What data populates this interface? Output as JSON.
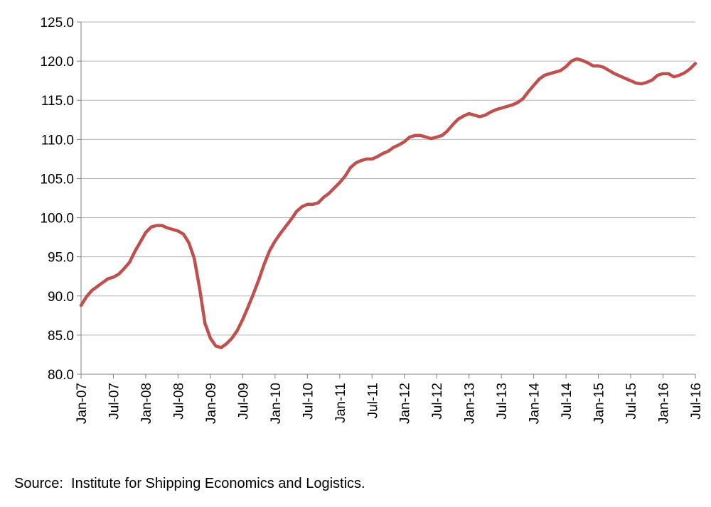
{
  "chart_data": {
    "type": "line",
    "title": "",
    "xlabel": "",
    "ylabel": "",
    "ylim": [
      80,
      125
    ],
    "grid": true,
    "legend": "none",
    "yticks": [
      "80.0",
      "85.0",
      "90.0",
      "95.0",
      "100.0",
      "105.0",
      "110.0",
      "115.0",
      "120.0",
      "125.0"
    ],
    "xticks": [
      "Jan-07",
      "Jul-07",
      "Jan-08",
      "Jul-08",
      "Jan-09",
      "Jul-09",
      "Jan-10",
      "Jul-10",
      "Jan-11",
      "Jul-11",
      "Jan-12",
      "Jul-12",
      "Jan-13",
      "Jul-13",
      "Jan-14",
      "Jul-14",
      "Jan-15",
      "Jul-15",
      "Jan-16",
      "Jul-16"
    ],
    "x_range": [
      "2007-01",
      "2016-07"
    ],
    "series": [
      {
        "color": "#C0504D",
        "points": [
          [
            "2007-01",
            88.8
          ],
          [
            "2007-02",
            89.9
          ],
          [
            "2007-03",
            90.7
          ],
          [
            "2007-04",
            91.2
          ],
          [
            "2007-05",
            91.7
          ],
          [
            "2007-06",
            92.2
          ],
          [
            "2007-07",
            92.4
          ],
          [
            "2007-08",
            92.8
          ],
          [
            "2007-09",
            93.5
          ],
          [
            "2007-10",
            94.3
          ],
          [
            "2007-11",
            95.7
          ],
          [
            "2007-12",
            96.9
          ],
          [
            "2008-01",
            98.1
          ],
          [
            "2008-02",
            98.8
          ],
          [
            "2008-03",
            99.0
          ],
          [
            "2008-04",
            99.0
          ],
          [
            "2008-05",
            98.7
          ],
          [
            "2008-06",
            98.5
          ],
          [
            "2008-07",
            98.3
          ],
          [
            "2008-08",
            97.9
          ],
          [
            "2008-09",
            96.8
          ],
          [
            "2008-10",
            94.8
          ],
          [
            "2008-11",
            91.0
          ],
          [
            "2008-12",
            86.5
          ],
          [
            "2009-01",
            84.6
          ],
          [
            "2009-02",
            83.6
          ],
          [
            "2009-03",
            83.4
          ],
          [
            "2009-04",
            83.9
          ],
          [
            "2009-05",
            84.6
          ],
          [
            "2009-06",
            85.6
          ],
          [
            "2009-07",
            87.0
          ],
          [
            "2009-08",
            88.6
          ],
          [
            "2009-09",
            90.3
          ],
          [
            "2009-10",
            92.1
          ],
          [
            "2009-11",
            94.1
          ],
          [
            "2009-12",
            95.8
          ],
          [
            "2010-01",
            97.0
          ],
          [
            "2010-02",
            98.0
          ],
          [
            "2010-03",
            98.9
          ],
          [
            "2010-04",
            99.8
          ],
          [
            "2010-05",
            100.8
          ],
          [
            "2010-06",
            101.4
          ],
          [
            "2010-07",
            101.7
          ],
          [
            "2010-08",
            101.7
          ],
          [
            "2010-09",
            101.9
          ],
          [
            "2010-10",
            102.6
          ],
          [
            "2010-11",
            103.1
          ],
          [
            "2010-12",
            103.8
          ],
          [
            "2011-01",
            104.5
          ],
          [
            "2011-02",
            105.3
          ],
          [
            "2011-03",
            106.4
          ],
          [
            "2011-04",
            107.0
          ],
          [
            "2011-05",
            107.3
          ],
          [
            "2011-06",
            107.5
          ],
          [
            "2011-07",
            107.5
          ],
          [
            "2011-08",
            107.8
          ],
          [
            "2011-09",
            108.2
          ],
          [
            "2011-10",
            108.5
          ],
          [
            "2011-11",
            109.0
          ],
          [
            "2011-12",
            109.3
          ],
          [
            "2012-01",
            109.7
          ],
          [
            "2012-02",
            110.3
          ],
          [
            "2012-03",
            110.5
          ],
          [
            "2012-04",
            110.5
          ],
          [
            "2012-05",
            110.3
          ],
          [
            "2012-06",
            110.1
          ],
          [
            "2012-07",
            110.3
          ],
          [
            "2012-08",
            110.5
          ],
          [
            "2012-09",
            111.1
          ],
          [
            "2012-10",
            111.9
          ],
          [
            "2012-11",
            112.6
          ],
          [
            "2012-12",
            113.0
          ],
          [
            "2013-01",
            113.3
          ],
          [
            "2013-02",
            113.1
          ],
          [
            "2013-03",
            112.9
          ],
          [
            "2013-04",
            113.1
          ],
          [
            "2013-05",
            113.5
          ],
          [
            "2013-06",
            113.8
          ],
          [
            "2013-07",
            114.0
          ],
          [
            "2013-08",
            114.2
          ],
          [
            "2013-09",
            114.4
          ],
          [
            "2013-10",
            114.7
          ],
          [
            "2013-11",
            115.2
          ],
          [
            "2013-12",
            116.1
          ],
          [
            "2014-01",
            116.9
          ],
          [
            "2014-02",
            117.7
          ],
          [
            "2014-03",
            118.2
          ],
          [
            "2014-04",
            118.4
          ],
          [
            "2014-05",
            118.6
          ],
          [
            "2014-06",
            118.8
          ],
          [
            "2014-07",
            119.3
          ],
          [
            "2014-08",
            120.0
          ],
          [
            "2014-09",
            120.3
          ],
          [
            "2014-10",
            120.1
          ],
          [
            "2014-11",
            119.8
          ],
          [
            "2014-12",
            119.4
          ],
          [
            "2015-01",
            119.4
          ],
          [
            "2015-02",
            119.2
          ],
          [
            "2015-03",
            118.8
          ],
          [
            "2015-04",
            118.4
          ],
          [
            "2015-05",
            118.1
          ],
          [
            "2015-06",
            117.8
          ],
          [
            "2015-07",
            117.5
          ],
          [
            "2015-08",
            117.2
          ],
          [
            "2015-09",
            117.1
          ],
          [
            "2015-10",
            117.3
          ],
          [
            "2015-11",
            117.6
          ],
          [
            "2015-12",
            118.2
          ],
          [
            "2016-01",
            118.4
          ],
          [
            "2016-02",
            118.4
          ],
          [
            "2016-03",
            118.0
          ],
          [
            "2016-04",
            118.2
          ],
          [
            "2016-05",
            118.5
          ],
          [
            "2016-06",
            119.0
          ],
          [
            "2016-07",
            119.7
          ]
        ]
      }
    ]
  },
  "source_note": "Source:  Institute for Shipping Economics and Logistics."
}
